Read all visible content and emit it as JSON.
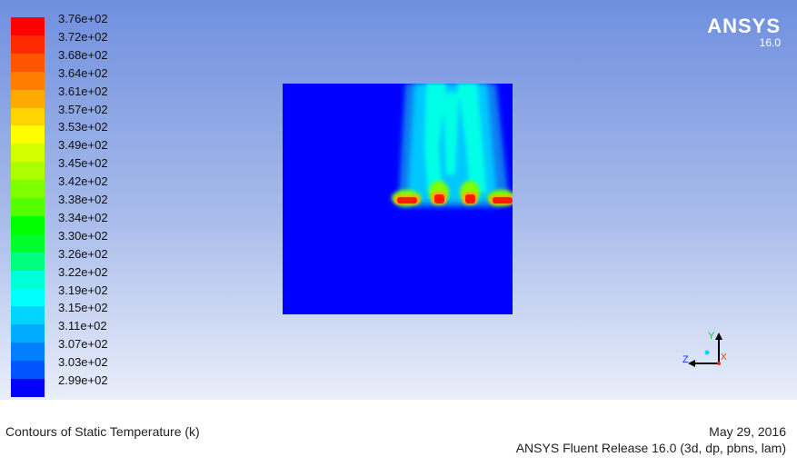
{
  "legend": {
    "colors": [
      "#ff0000",
      "#ff2a00",
      "#ff5500",
      "#ff7f00",
      "#ffaa00",
      "#ffd400",
      "#ffff00",
      "#d4ff00",
      "#aaff00",
      "#7fff00",
      "#55ff00",
      "#00ff00",
      "#00ff2a",
      "#00ff7f",
      "#00ffd4",
      "#00ffff",
      "#00d4ff",
      "#00aaff",
      "#007fff",
      "#0055ff",
      "#0000ff"
    ],
    "ticks": [
      "3.76e+02",
      "3.72e+02",
      "3.68e+02",
      "3.64e+02",
      "3.61e+02",
      "3.57e+02",
      "3.53e+02",
      "3.49e+02",
      "3.45e+02",
      "3.42e+02",
      "3.38e+02",
      "3.34e+02",
      "3.30e+02",
      "3.26e+02",
      "3.22e+02",
      "3.19e+02",
      "3.15e+02",
      "3.11e+02",
      "3.07e+02",
      "3.03e+02",
      "2.99e+02"
    ]
  },
  "brand": {
    "name": "ANSYS",
    "version": "16.0"
  },
  "axes": {
    "y": "Y",
    "z": "Z",
    "x": "X"
  },
  "footer": {
    "caption": "Contours of Static Temperature (k)",
    "date": "May 29, 2016",
    "release": "ANSYS Fluent Release 16.0 (3d, dp, pbns, lam)"
  }
}
